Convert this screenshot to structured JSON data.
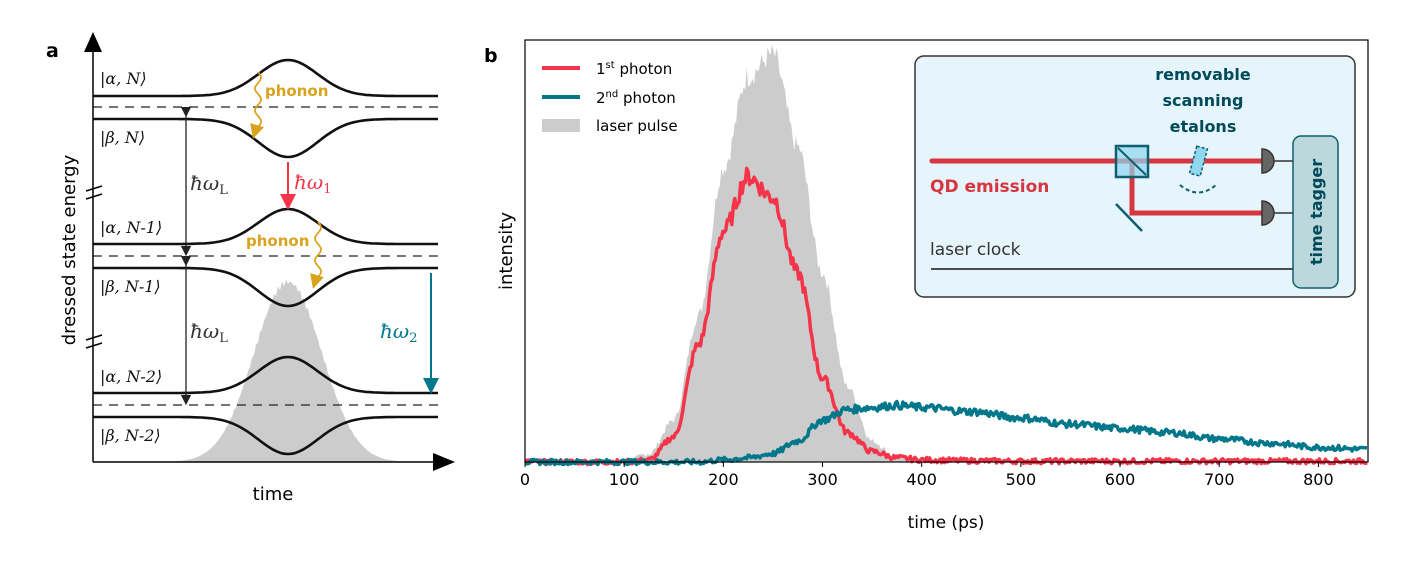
{
  "panel_a": {
    "label": "a",
    "ylabel": "dressed state energy",
    "xlabel": "time",
    "states": [
      "|α, N⟩",
      "|β, N⟩",
      "|α, N-1⟩",
      "|β, N-1⟩",
      "|α, N-2⟩",
      "|β, N-2⟩"
    ],
    "phonon_label": "phonon",
    "laser_energy": "ħω",
    "laser_sub": "L",
    "photon1": "ħω",
    "photon1_sub": "1",
    "photon2": "ħω",
    "photon2_sub": "2",
    "colors": {
      "phonon": "#d9a31f",
      "photon1": "#f5344a",
      "photon2": "#00778a",
      "pulse": "#cccccc"
    }
  },
  "panel_b": {
    "label": "b",
    "inset": {
      "etalon_label": [
        "removable",
        "scanning",
        "etalons"
      ],
      "emission_label": "QD emission",
      "clock_label": "laser clock",
      "tagger_label": "time tagger",
      "colors": {
        "background": "#e6f4fb",
        "beam": "#d6363f",
        "text": "#004a5a"
      }
    }
  },
  "chart_data": {
    "type": "line",
    "xlabel": "time (ps)",
    "ylabel": "intensity",
    "xlim": [
      0,
      850
    ],
    "ylim": [
      0,
      1
    ],
    "xticks": [
      "0",
      "100",
      "200",
      "300",
      "400",
      "500",
      "600",
      "700",
      "800"
    ],
    "grid": false,
    "legend": "top-left",
    "x": [
      0,
      25,
      50,
      75,
      100,
      125,
      150,
      175,
      200,
      225,
      250,
      275,
      300,
      325,
      350,
      375,
      400,
      450,
      500,
      550,
      600,
      650,
      700,
      750,
      800,
      850
    ],
    "series": [
      {
        "name": "1st photon",
        "name_main": "1",
        "name_sup": "st",
        "name_rest": " photon",
        "color": "#f5344a",
        "kind": "line",
        "values": [
          0,
          0,
          0,
          0,
          0,
          0.005,
          0.06,
          0.28,
          0.55,
          0.68,
          0.63,
          0.45,
          0.2,
          0.07,
          0.025,
          0.01,
          0.005,
          0.003,
          0.002,
          0.002,
          0.002,
          0.002,
          0.002,
          0.002,
          0.002,
          0.002
        ]
      },
      {
        "name": "2nd photon",
        "name_main": "2",
        "name_sup": "nd",
        "name_rest": " photon",
        "color": "#00778a",
        "kind": "line",
        "values": [
          0,
          0,
          0,
          0,
          0,
          0,
          0,
          0,
          0.005,
          0.01,
          0.02,
          0.05,
          0.1,
          0.125,
          0.13,
          0.135,
          0.13,
          0.12,
          0.105,
          0.09,
          0.08,
          0.07,
          0.055,
          0.045,
          0.035,
          0.03
        ]
      },
      {
        "name": "laser pulse",
        "color": "#cccccc",
        "kind": "area",
        "values": [
          0,
          0,
          0,
          0,
          0,
          0.02,
          0.1,
          0.35,
          0.7,
          0.92,
          0.97,
          0.75,
          0.45,
          0.18,
          0.05,
          0.01,
          0,
          0,
          0,
          0,
          0,
          0,
          0,
          0,
          0,
          0
        ]
      }
    ]
  }
}
